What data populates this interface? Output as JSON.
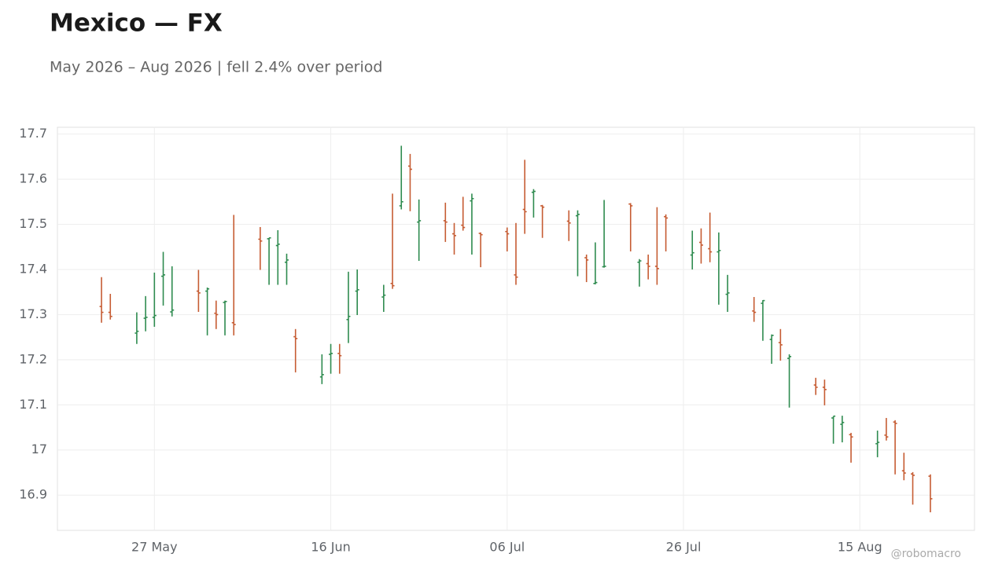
{
  "chart_data": {
    "type": "ohlc",
    "title": "Mexico — FX",
    "subtitle": "May 2026 – Aug 2026 | fell 2.4% over period",
    "watermark": "@robomacro",
    "up_color": "#2e8b4f",
    "down_color": "#c65c33",
    "grid": true,
    "x": [
      "21 May",
      "22 May",
      "25 May",
      "26 May",
      "27 May",
      "28 May",
      "29 May",
      "1 Jun",
      "2 Jun",
      "3 Jun",
      "4 Jun",
      "5 Jun",
      "8 Jun",
      "9 Jun",
      "10 Jun",
      "11 Jun",
      "12 Jun",
      "15 Jun",
      "16 Jun",
      "17 Jun",
      "18 Jun",
      "19 Jun",
      "22 Jun",
      "23 Jun",
      "24 Jun",
      "25 Jun",
      "26 Jun",
      "29 Jun",
      "30 Jun",
      "1 Jul",
      "2 Jul",
      "3 Jul",
      "6 Jul",
      "7 Jul",
      "8 Jul",
      "9 Jul",
      "10 Jul",
      "13 Jul",
      "14 Jul",
      "15 Jul",
      "16 Jul",
      "17 Jul",
      "20 Jul",
      "21 Jul",
      "22 Jul",
      "23 Jul",
      "24 Jul",
      "27 Jul",
      "28 Jul",
      "29 Jul",
      "30 Jul",
      "31 Jul",
      "3 Aug",
      "4 Aug",
      "5 Aug",
      "6 Aug",
      "7 Aug",
      "10 Aug",
      "11 Aug",
      "12 Aug",
      "13 Aug",
      "14 Aug",
      "17 Aug",
      "18 Aug",
      "19 Aug",
      "20 Aug",
      "21 Aug",
      "23 Aug"
    ],
    "open": [
      17.318,
      17.305,
      17.259,
      17.292,
      17.294,
      17.385,
      17.306,
      17.352,
      17.352,
      17.303,
      17.327,
      17.282,
      17.467,
      17.468,
      17.453,
      17.416,
      17.251,
      17.162,
      17.212,
      17.214,
      17.289,
      17.352,
      17.339,
      17.369,
      17.541,
      17.629,
      17.505,
      17.508,
      17.479,
      17.498,
      17.552,
      17.48,
      17.484,
      17.388,
      17.533,
      17.571,
      17.541,
      17.507,
      17.519,
      17.426,
      17.369,
      17.406,
      17.545,
      17.416,
      17.413,
      17.407,
      17.517,
      17.432,
      17.46,
      17.446,
      17.439,
      17.345,
      17.308,
      17.325,
      17.245,
      17.238,
      17.203,
      17.144,
      17.139,
      17.071,
      17.057,
      17.034,
      17.014,
      17.033,
      17.062,
      16.954,
      16.947,
      16.942
    ],
    "high": [
      17.383,
      17.346,
      17.305,
      17.341,
      17.393,
      17.439,
      17.407,
      17.399,
      17.36,
      17.331,
      17.331,
      17.521,
      17.494,
      17.47,
      17.487,
      17.435,
      17.268,
      17.212,
      17.235,
      17.235,
      17.395,
      17.4,
      17.366,
      17.568,
      17.674,
      17.656,
      17.555,
      17.548,
      17.503,
      17.561,
      17.568,
      17.482,
      17.493,
      17.503,
      17.643,
      17.578,
      17.543,
      17.531,
      17.531,
      17.433,
      17.46,
      17.554,
      17.547,
      17.423,
      17.433,
      17.538,
      17.522,
      17.486,
      17.491,
      17.526,
      17.482,
      17.388,
      17.339,
      17.332,
      17.256,
      17.268,
      17.212,
      17.16,
      17.156,
      17.075,
      17.076,
      17.038,
      17.043,
      17.071,
      17.066,
      16.994,
      16.951,
      16.946
    ],
    "low": [
      17.282,
      17.289,
      17.235,
      17.263,
      17.273,
      17.32,
      17.296,
      17.306,
      17.254,
      17.268,
      17.254,
      17.254,
      17.399,
      17.366,
      17.366,
      17.366,
      17.172,
      17.146,
      17.169,
      17.169,
      17.237,
      17.299,
      17.306,
      17.357,
      17.533,
      17.529,
      17.419,
      17.461,
      17.433,
      17.486,
      17.433,
      17.405,
      17.44,
      17.366,
      17.479,
      17.515,
      17.47,
      17.463,
      17.385,
      17.372,
      17.367,
      17.404,
      17.44,
      17.362,
      17.378,
      17.366,
      17.44,
      17.4,
      17.413,
      17.416,
      17.322,
      17.306,
      17.284,
      17.242,
      17.191,
      17.198,
      17.094,
      17.122,
      17.099,
      17.014,
      17.017,
      16.972,
      16.984,
      17.021,
      16.946,
      16.933,
      16.879,
      16.862
    ],
    "close": [
      17.305,
      17.296,
      17.263,
      17.294,
      17.298,
      17.388,
      17.31,
      17.348,
      17.357,
      17.3,
      17.329,
      17.278,
      17.463,
      17.47,
      17.456,
      17.421,
      17.247,
      17.167,
      17.214,
      17.209,
      17.296,
      17.355,
      17.343,
      17.364,
      17.55,
      17.622,
      17.508,
      17.505,
      17.475,
      17.493,
      17.557,
      17.477,
      17.479,
      17.383,
      17.528,
      17.573,
      17.538,
      17.503,
      17.522,
      17.421,
      17.371,
      17.407,
      17.541,
      17.419,
      17.407,
      17.402,
      17.514,
      17.437,
      17.454,
      17.439,
      17.442,
      17.348,
      17.305,
      17.331,
      17.254,
      17.233,
      17.207,
      17.139,
      17.134,
      17.075,
      17.061,
      17.029,
      17.017,
      17.029,
      17.059,
      16.949,
      16.944,
      16.892
    ],
    "xlim": [
      "16 May",
      "28 Aug"
    ],
    "xticks": [
      "27 May",
      "16 Jun",
      "06 Jul",
      "26 Jul",
      "15 Aug"
    ],
    "ylim": [
      16.822,
      17.715
    ],
    "yticks": [
      16.9,
      17,
      17.1,
      17.2,
      17.3,
      17.4,
      17.5,
      17.6,
      17.7
    ]
  }
}
